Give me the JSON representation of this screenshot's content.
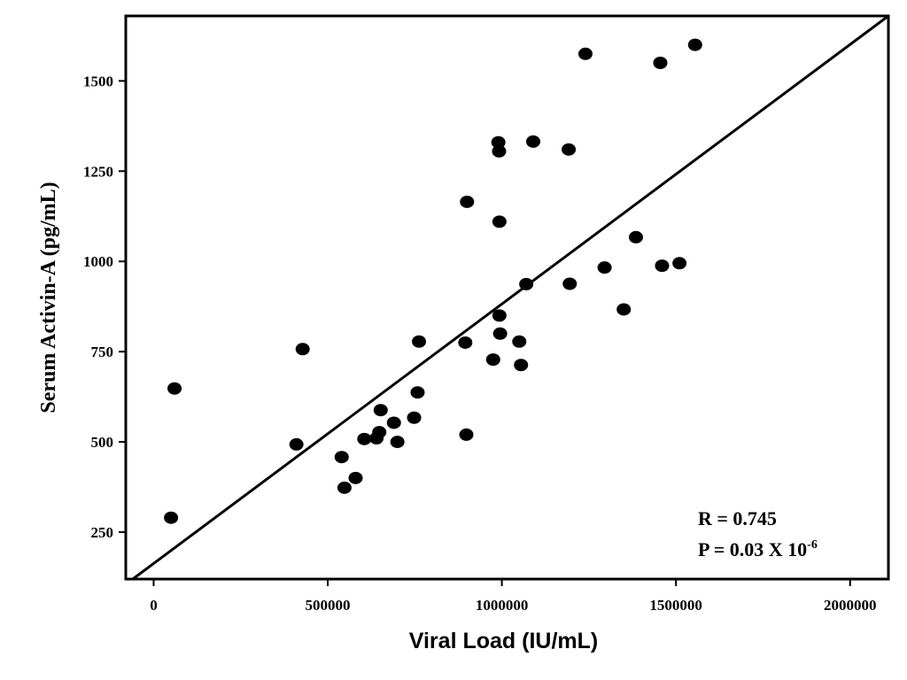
{
  "chart_data": {
    "type": "scatter",
    "title": "",
    "xlabel": "Viral Load (IU/mL)",
    "ylabel": "Serum Activin-A (pg/mL)",
    "xlim": [
      -80000,
      2110000
    ],
    "ylim": [
      120,
      1680
    ],
    "x_ticks": [
      0,
      500000,
      1000000,
      1500000,
      2000000
    ],
    "x_tick_labels": [
      "0",
      "500000",
      "1000000",
      "1500000",
      "2000000"
    ],
    "y_ticks": [
      250,
      500,
      750,
      1000,
      1250,
      1500
    ],
    "y_tick_labels": [
      "250",
      "500",
      "750",
      "1000",
      "1250",
      "1500"
    ],
    "grid": false,
    "series": [
      {
        "name": "samples",
        "points": [
          {
            "x": 50000,
            "y": 290
          },
          {
            "x": 60000,
            "y": 648
          },
          {
            "x": 410000,
            "y": 493
          },
          {
            "x": 428000,
            "y": 757
          },
          {
            "x": 540000,
            "y": 458
          },
          {
            "x": 548000,
            "y": 373
          },
          {
            "x": 580000,
            "y": 400
          },
          {
            "x": 605000,
            "y": 508
          },
          {
            "x": 640000,
            "y": 510
          },
          {
            "x": 648000,
            "y": 527
          },
          {
            "x": 652000,
            "y": 588
          },
          {
            "x": 690000,
            "y": 553
          },
          {
            "x": 700000,
            "y": 500
          },
          {
            "x": 748000,
            "y": 567
          },
          {
            "x": 758000,
            "y": 637
          },
          {
            "x": 762000,
            "y": 778
          },
          {
            "x": 895000,
            "y": 775
          },
          {
            "x": 898000,
            "y": 520
          },
          {
            "x": 900000,
            "y": 1165
          },
          {
            "x": 975000,
            "y": 728
          },
          {
            "x": 990000,
            "y": 1330
          },
          {
            "x": 992000,
            "y": 1305
          },
          {
            "x": 993000,
            "y": 1110
          },
          {
            "x": 993000,
            "y": 850
          },
          {
            "x": 995000,
            "y": 800
          },
          {
            "x": 1050000,
            "y": 778
          },
          {
            "x": 1055000,
            "y": 713
          },
          {
            "x": 1070000,
            "y": 937
          },
          {
            "x": 1090000,
            "y": 1332
          },
          {
            "x": 1192000,
            "y": 1310
          },
          {
            "x": 1195000,
            "y": 938
          },
          {
            "x": 1240000,
            "y": 1575
          },
          {
            "x": 1295000,
            "y": 983
          },
          {
            "x": 1350000,
            "y": 867
          },
          {
            "x": 1385000,
            "y": 1067
          },
          {
            "x": 1455000,
            "y": 1550
          },
          {
            "x": 1460000,
            "y": 988
          },
          {
            "x": 1510000,
            "y": 995
          },
          {
            "x": 1555000,
            "y": 1600
          }
        ]
      }
    ],
    "fit_line": {
      "x": [
        -60000,
        2110000
      ],
      "y": [
        120,
        1680
      ]
    },
    "annotations": {
      "r_text": "R = 0.745",
      "p_text": "P = 0.03 X 10",
      "p_exponent": "-6"
    }
  }
}
